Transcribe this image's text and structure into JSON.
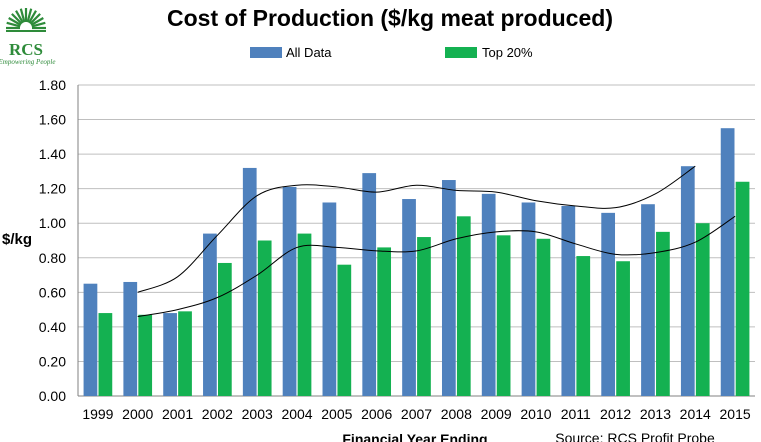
{
  "logo": {
    "name": "RCS",
    "tagline": "Empowering People"
  },
  "colors": {
    "all_data": "#4f81bd",
    "top20": "#14b151",
    "logo": "#2e8b3a",
    "trend": "#000000",
    "grid": "#bfbfbf"
  },
  "chart_data": {
    "type": "bar",
    "title": "Cost of Production ($/kg meat produced)",
    "ylabel": "$/kg",
    "xlabel": "Financial Year Ending",
    "source": "Source: RCS Profit Probe",
    "ylim": [
      0,
      1.8
    ],
    "yticks": [
      "0.00",
      "0.20",
      "0.40",
      "0.60",
      "0.80",
      "1.00",
      "1.20",
      "1.40",
      "1.60",
      "1.80"
    ],
    "grid": true,
    "legend_position": "top",
    "categories": [
      "1999",
      "2000",
      "2001",
      "2002",
      "2003",
      "2004",
      "2005",
      "2006",
      "2007",
      "2008",
      "2009",
      "2010",
      "2011",
      "2012",
      "2013",
      "2014",
      "2015"
    ],
    "series": [
      {
        "name": "All Data",
        "values": [
          0.65,
          0.66,
          0.48,
          0.94,
          1.32,
          1.21,
          1.12,
          1.29,
          1.14,
          1.25,
          1.17,
          1.12,
          1.1,
          1.06,
          1.11,
          1.33,
          1.55
        ]
      },
      {
        "name": "Top 20%",
        "values": [
          0.48,
          0.47,
          0.49,
          0.77,
          0.9,
          0.94,
          0.76,
          0.86,
          0.92,
          1.04,
          0.93,
          0.91,
          0.81,
          0.78,
          0.95,
          1.0,
          1.24
        ]
      }
    ],
    "trendlines": [
      {
        "series": "All Data",
        "start_index": 1,
        "values": [
          0.6,
          0.69,
          0.93,
          1.16,
          1.22,
          1.21,
          1.18,
          1.22,
          1.19,
          1.18,
          1.13,
          1.1,
          1.09,
          1.17,
          1.33
        ]
      },
      {
        "series": "Top 20%",
        "start_index": 1,
        "values": [
          0.46,
          0.5,
          0.57,
          0.7,
          0.86,
          0.86,
          0.84,
          0.84,
          0.91,
          0.95,
          0.95,
          0.88,
          0.82,
          0.83,
          0.89,
          1.04
        ]
      }
    ]
  }
}
